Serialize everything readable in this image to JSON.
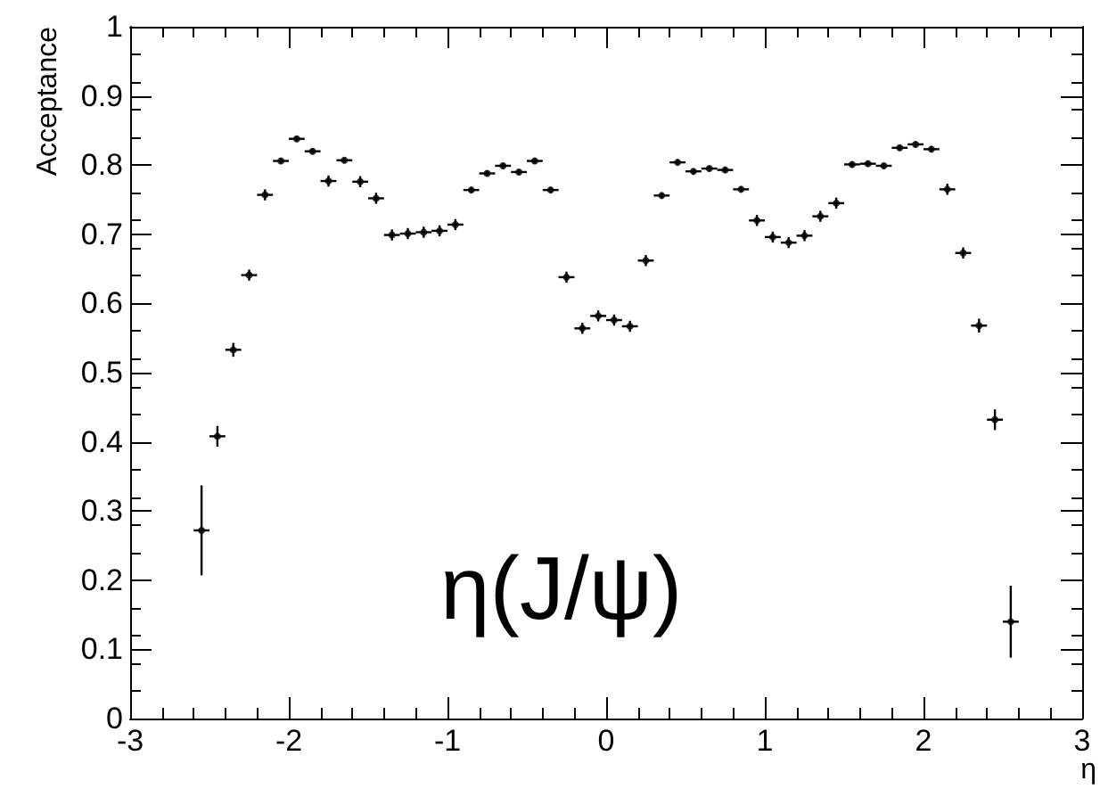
{
  "chart_data": {
    "type": "scatter",
    "xlabel": "η",
    "ylabel": "Acceptance",
    "annotations": [
      "η(J/ψ)"
    ],
    "x": [
      -2.55,
      -2.45,
      -2.35,
      -2.25,
      -2.15,
      -2.05,
      -1.95,
      -1.85,
      -1.75,
      -1.65,
      -1.55,
      -1.45,
      -1.35,
      -1.25,
      -1.15,
      -1.05,
      -0.95,
      -0.85,
      -0.75,
      -0.65,
      -0.55,
      -0.45,
      -0.35,
      -0.25,
      -0.15,
      -0.05,
      0.05,
      0.15,
      0.25,
      0.35,
      0.45,
      0.55,
      0.65,
      0.75,
      0.85,
      0.95,
      1.05,
      1.15,
      1.25,
      1.35,
      1.45,
      1.55,
      1.65,
      1.75,
      1.85,
      1.95,
      2.05,
      2.15,
      2.25,
      2.35,
      2.45,
      2.55
    ],
    "values": [
      0.272,
      0.408,
      0.533,
      0.641,
      0.757,
      0.806,
      0.838,
      0.82,
      0.777,
      0.807,
      0.776,
      0.752,
      0.699,
      0.701,
      0.703,
      0.705,
      0.714,
      0.764,
      0.788,
      0.799,
      0.79,
      0.806,
      0.764,
      0.638,
      0.564,
      0.582,
      0.576,
      0.567,
      0.662,
      0.756,
      0.804,
      0.791,
      0.795,
      0.793,
      0.765,
      0.72,
      0.696,
      0.688,
      0.698,
      0.726,
      0.745,
      0.801,
      0.802,
      0.799,
      0.825,
      0.83,
      0.823,
      0.765,
      0.673,
      0.568,
      0.432,
      0.14
    ],
    "errors": [
      0.065,
      0.015,
      0.01,
      0.008,
      0.008,
      0.004,
      0.004,
      0.004,
      0.008,
      0.004,
      0.008,
      0.008,
      0.008,
      0.008,
      0.008,
      0.008,
      0.008,
      0.004,
      0.004,
      0.004,
      0.004,
      0.004,
      0.004,
      0.008,
      0.008,
      0.008,
      0.008,
      0.008,
      0.008,
      0.004,
      0.004,
      0.004,
      0.004,
      0.004,
      0.004,
      0.008,
      0.008,
      0.008,
      0.008,
      0.008,
      0.008,
      0.004,
      0.004,
      0.004,
      0.004,
      0.004,
      0.004,
      0.008,
      0.008,
      0.01,
      0.015,
      0.052
    ],
    "xerrors": [
      0.05,
      0.05,
      0.05,
      0.05,
      0.05,
      0.05,
      0.05,
      0.05,
      0.05,
      0.05,
      0.05,
      0.05,
      0.05,
      0.05,
      0.05,
      0.05,
      0.05,
      0.05,
      0.05,
      0.05,
      0.05,
      0.05,
      0.05,
      0.05,
      0.05,
      0.05,
      0.05,
      0.05,
      0.05,
      0.05,
      0.05,
      0.05,
      0.05,
      0.05,
      0.05,
      0.05,
      0.05,
      0.05,
      0.05,
      0.05,
      0.05,
      0.05,
      0.05,
      0.05,
      0.05,
      0.05,
      0.05,
      0.05,
      0.05,
      0.05,
      0.05,
      0.05
    ],
    "color": "#000000",
    "marker": "circle",
    "xlim": [
      -3,
      3
    ],
    "xticks": [
      -3,
      -2,
      -1,
      0,
      1,
      2,
      3
    ],
    "ylim": [
      0,
      1
    ],
    "yticks": [
      0,
      0.1,
      0.2,
      0.3,
      0.4,
      0.5,
      0.6,
      0.7,
      0.8,
      0.9,
      1
    ]
  }
}
